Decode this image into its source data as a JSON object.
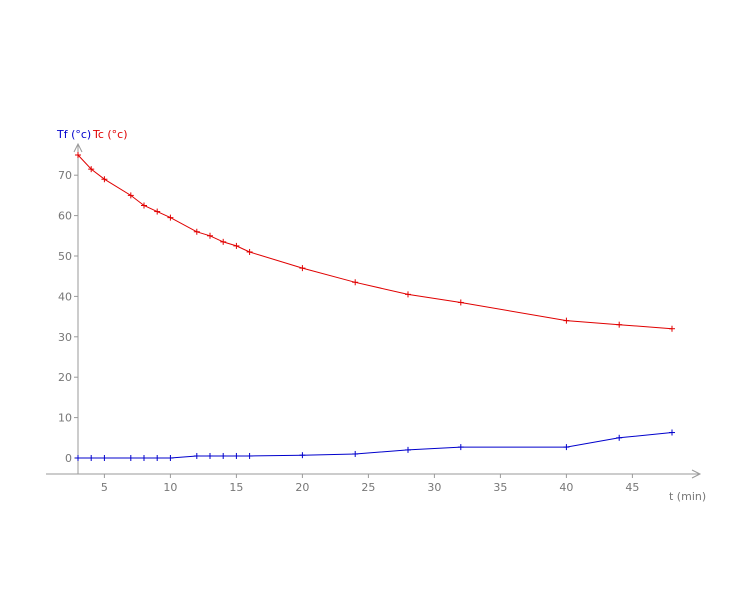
{
  "chart_data": {
    "type": "line",
    "xlabel": "t (min)",
    "ylabel": "",
    "xlim": [
      3,
      50
    ],
    "ylim": [
      -2,
      78
    ],
    "x_ticks": [
      5,
      10,
      15,
      20,
      25,
      30,
      35,
      40,
      45
    ],
    "y_ticks": [
      0,
      10,
      20,
      30,
      40,
      50,
      60,
      70
    ],
    "legend_placement": "top-left",
    "grid": false,
    "series": [
      {
        "name": "Tf (°c)",
        "color": "#0000cc",
        "points": [
          [
            3,
            0
          ],
          [
            4,
            0
          ],
          [
            5,
            0
          ],
          [
            7,
            0
          ],
          [
            8,
            0
          ],
          [
            9,
            0
          ],
          [
            10,
            0
          ],
          [
            12,
            0.5
          ],
          [
            13,
            0.5
          ],
          [
            14,
            0.5
          ],
          [
            15,
            0.5
          ],
          [
            16,
            0.5
          ],
          [
            20,
            0.7
          ],
          [
            24,
            1
          ],
          [
            28,
            2
          ],
          [
            32,
            2.7
          ],
          [
            40,
            2.7
          ],
          [
            44,
            5
          ],
          [
            48,
            6.3
          ]
        ]
      },
      {
        "name": "Tc (°c)",
        "color": "#e00000",
        "points": [
          [
            3,
            75
          ],
          [
            4,
            71.5
          ],
          [
            5,
            69
          ],
          [
            7,
            65
          ],
          [
            8,
            62.5
          ],
          [
            9,
            61
          ],
          [
            10,
            59.5
          ],
          [
            12,
            56
          ],
          [
            13,
            55
          ],
          [
            14,
            53.5
          ],
          [
            15,
            52.5
          ],
          [
            16,
            51
          ],
          [
            20,
            47
          ],
          [
            24,
            43.5
          ],
          [
            28,
            40.5
          ],
          [
            32,
            38.5
          ],
          [
            40,
            34
          ],
          [
            44,
            33
          ],
          [
            48,
            32
          ]
        ]
      }
    ]
  }
}
